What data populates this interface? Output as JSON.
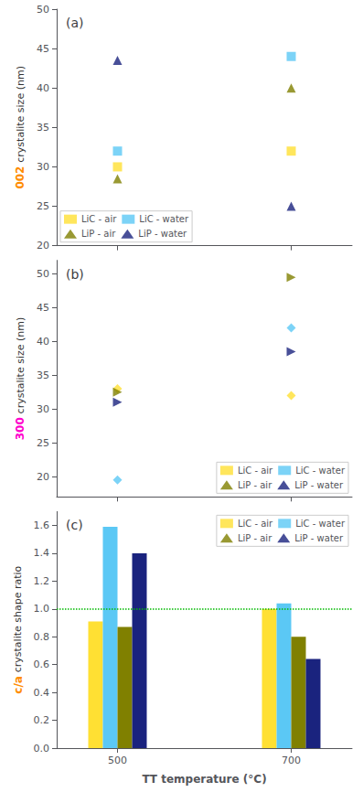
{
  "chart_data": [
    {
      "type": "scatter",
      "title": "(a)",
      "ylabel": [
        {
          "text": "002",
          "color": "#FF8C00"
        },
        {
          "text": "crystalite size (nm)"
        }
      ],
      "xlim": [
        430,
        770
      ],
      "xticks": [
        500,
        700
      ],
      "ylim": [
        20,
        50
      ],
      "yticks": [
        20,
        25,
        30,
        35,
        40,
        45,
        50
      ],
      "tick_labels": "y",
      "legend": "lower left",
      "grid": false,
      "series": [
        {
          "name": "LiC - air",
          "color": "#FFE033",
          "marker": "square",
          "x": [
            500,
            700
          ],
          "values": [
            30.0,
            32.0
          ]
        },
        {
          "name": "LiC - water",
          "color": "#5BC8F5",
          "marker": "square",
          "x": [
            500,
            700
          ],
          "values": [
            32.0,
            44.0
          ]
        },
        {
          "name": "LiP - air",
          "color": "#808000",
          "marker": "triangle",
          "x": [
            500,
            700
          ],
          "values": [
            28.5,
            40.0
          ]
        },
        {
          "name": "LiP - water",
          "color": "#1A237E",
          "marker": "triangle",
          "x": [
            500,
            700
          ],
          "values": [
            43.5,
            25.0
          ]
        }
      ]
    },
    {
      "type": "scatter",
      "title": "(b)",
      "ylabel": [
        {
          "text": "300",
          "color": "#FF00CC"
        },
        {
          "text": "crystalite size (nm)"
        }
      ],
      "xlim": [
        430,
        770
      ],
      "xticks": [
        500,
        700
      ],
      "ylim": [
        17,
        52
      ],
      "yticks": [
        20,
        25,
        30,
        35,
        40,
        45,
        50
      ],
      "tick_labels": "y",
      "legend": "lower right",
      "grid": false,
      "series": [
        {
          "name": "LiC - air",
          "color": "#FFE033",
          "marker": "diamond",
          "x": [
            500,
            700
          ],
          "values": [
            33.0,
            32.0
          ]
        },
        {
          "name": "LiC - water",
          "color": "#5BC8F5",
          "marker": "diamond",
          "x": [
            500,
            700
          ],
          "values": [
            19.5,
            42.0
          ]
        },
        {
          "name": "LiP - air",
          "color": "#808000",
          "marker": "triangle_right",
          "x": [
            500,
            700
          ],
          "values": [
            32.5,
            49.5
          ]
        },
        {
          "name": "LiP - water",
          "color": "#1A237E",
          "marker": "triangle_right",
          "x": [
            500,
            700
          ],
          "values": [
            31.0,
            38.5
          ]
        }
      ]
    },
    {
      "type": "bar",
      "title": "(c)",
      "xlabel": "TT temperature (°C)",
      "ylabel": [
        {
          "text": "c/a",
          "color": "#FF8C00"
        },
        {
          "text": "crystalite shape ratio"
        }
      ],
      "x": [
        500,
        700
      ],
      "xlim": [
        430,
        770
      ],
      "xticks": [
        500,
        700
      ],
      "ylim": [
        0.0,
        1.7
      ],
      "yticks": [
        {
          "value": 0.0,
          "label": "0.0"
        },
        0.2,
        0.4,
        0.6,
        0.8,
        {
          "value": 1.0,
          "label": "1.0"
        },
        1.2,
        1.4,
        1.6
      ],
      "legend": "upper right",
      "grid": false,
      "hline": {
        "y": 1.0,
        "color": "#00BB00",
        "line_style": "dotted"
      },
      "series": [
        {
          "name": "LiC - air",
          "color": "#FFE033",
          "values": [
            0.91,
            1.0
          ]
        },
        {
          "name": "LiC - water",
          "color": "#5BC8F5",
          "values": [
            1.59,
            1.04
          ]
        },
        {
          "name": "LiP - air",
          "color": "#808000",
          "values": [
            0.87,
            0.8
          ]
        },
        {
          "name": "LiP - water",
          "color": "#1A237E",
          "values": [
            1.4,
            0.64
          ]
        }
      ]
    }
  ]
}
